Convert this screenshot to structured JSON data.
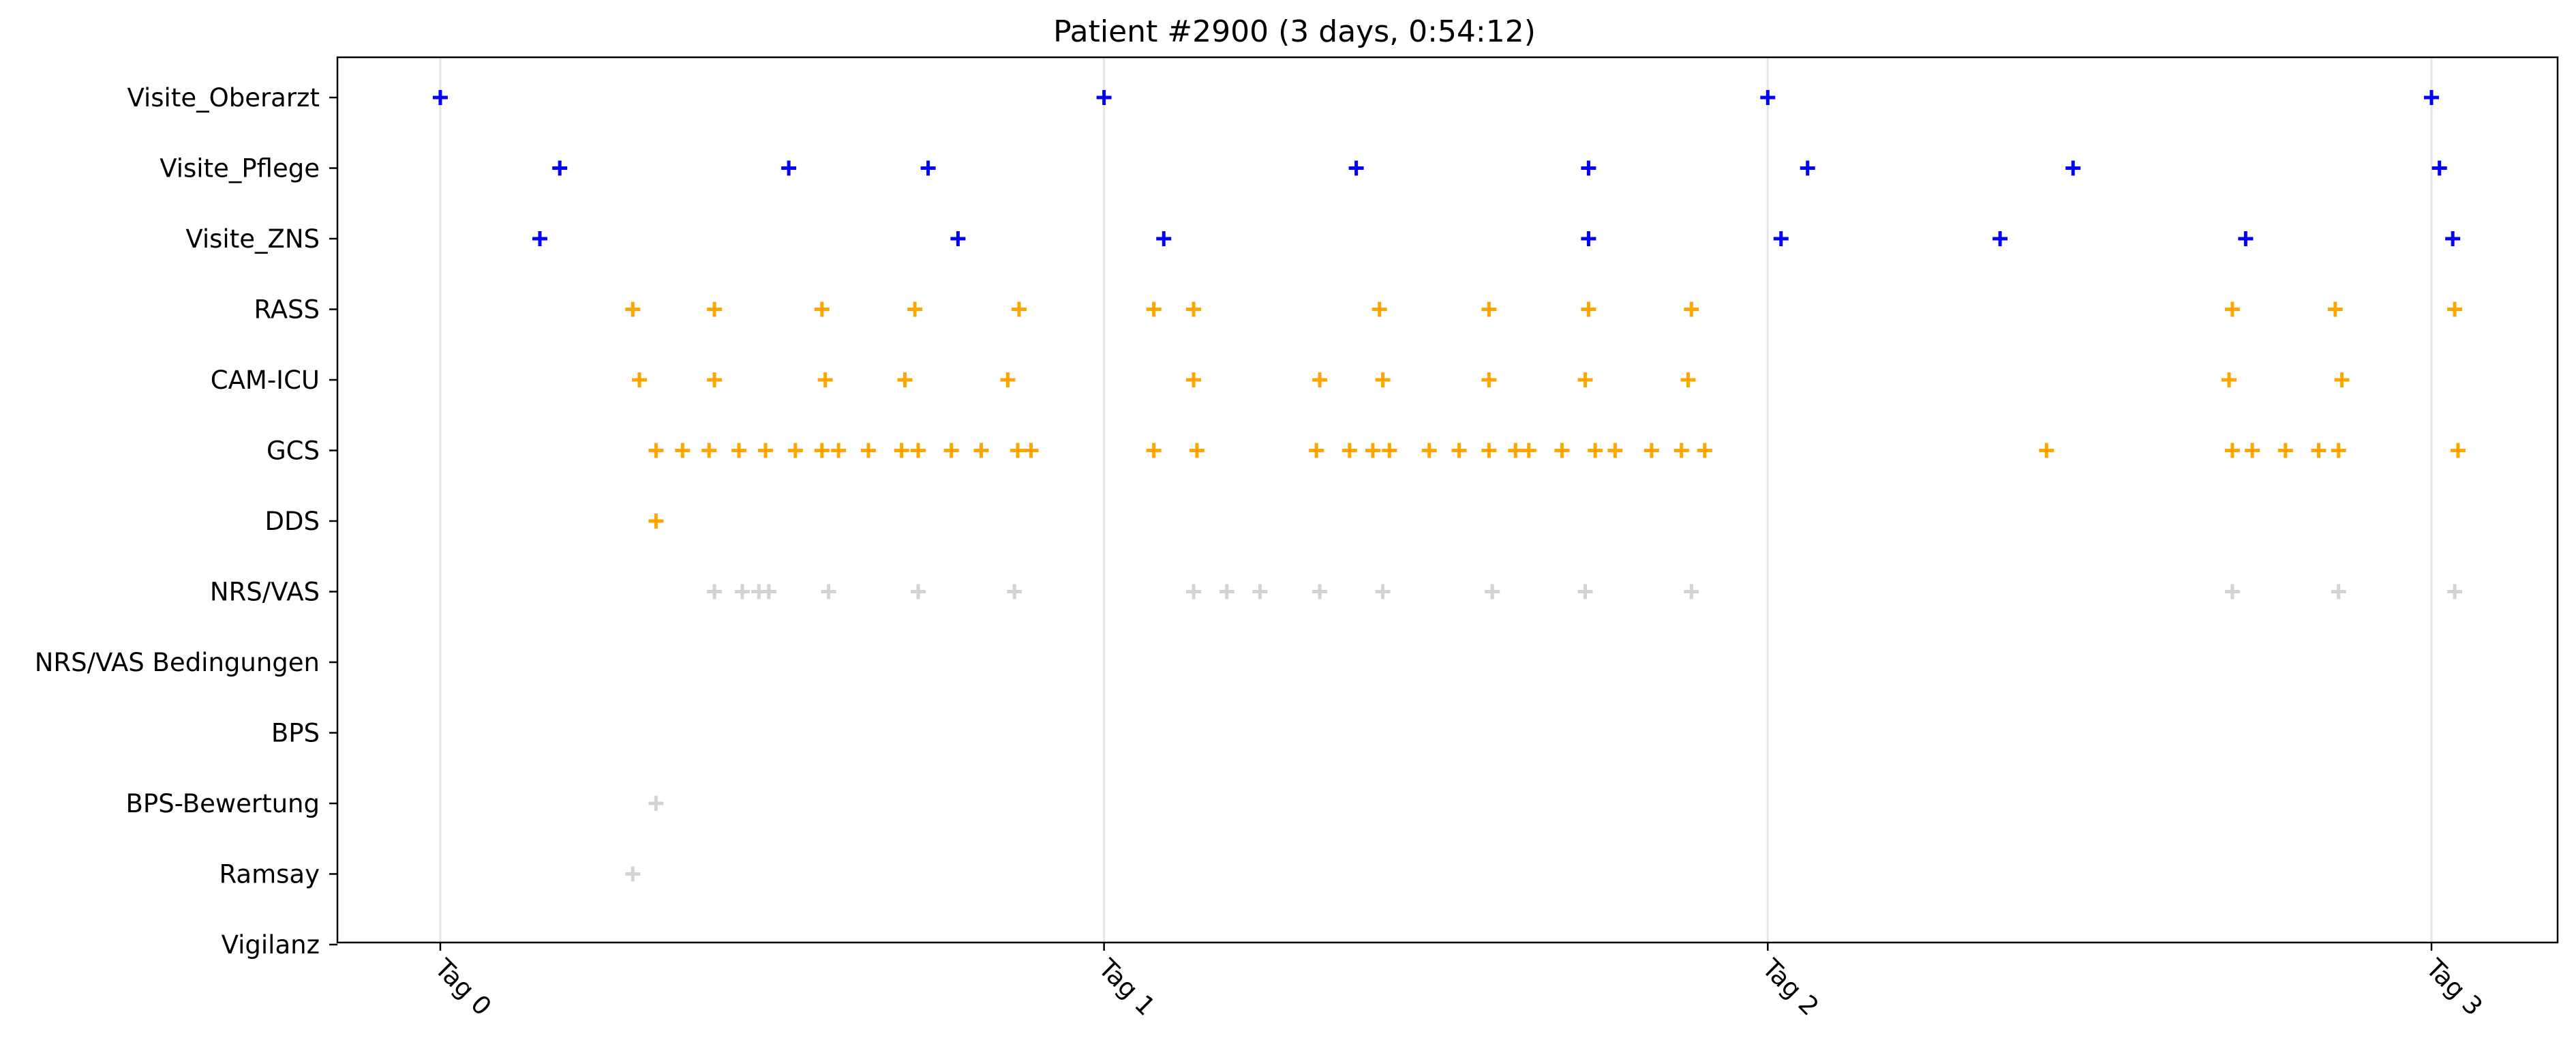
{
  "chart_data": {
    "type": "scatter",
    "title": "Patient #2900 (3 days, 0:54:12)",
    "xlabel": "",
    "ylabel": "",
    "marker": "plus",
    "grid": "vertical lines at day ticks",
    "x_unit": "days since Tag 0",
    "xlim": [
      -0.155,
      3.19
    ],
    "x_ticks": [
      {
        "value": 0,
        "label": "Tag 0"
      },
      {
        "value": 1,
        "label": "Tag 1"
      },
      {
        "value": 2,
        "label": "Tag 2"
      },
      {
        "value": 3,
        "label": "Tag 3"
      }
    ],
    "categories": [
      "Visite_Oberarzt",
      "Visite_Pflege",
      "Visite_ZNS",
      "RASS",
      "CAM-ICU",
      "GCS",
      "DDS",
      "NRS/VAS",
      "NRS/VAS Bedingungen",
      "BPS",
      "BPS-Bewertung",
      "Ramsay",
      "Vigilanz"
    ],
    "colors": {
      "visits": "#0000ff",
      "scores": "#ffa500",
      "pain": "#d3d3d3",
      "grid": "#e6e6e6"
    },
    "series": [
      {
        "category": "Visite_Oberarzt",
        "color": "#0000ff",
        "x": [
          0.0,
          1.0,
          2.0,
          3.0
        ]
      },
      {
        "category": "Visite_Pflege",
        "color": "#0000ff",
        "x": [
          0.18,
          0.525,
          0.735,
          1.38,
          1.73,
          2.06,
          2.46,
          3.012
        ]
      },
      {
        "category": "Visite_ZNS",
        "color": "#0000ff",
        "x": [
          0.15,
          0.78,
          1.09,
          1.73,
          2.02,
          2.35,
          2.72,
          3.032
        ]
      },
      {
        "category": "RASS",
        "color": "#ffa500",
        "x": [
          0.29,
          0.413,
          0.575,
          0.715,
          0.872,
          1.075,
          1.135,
          1.415,
          1.58,
          1.73,
          1.885,
          2.7,
          2.855,
          3.035
        ]
      },
      {
        "category": "CAM-ICU",
        "color": "#ffa500",
        "x": [
          0.3,
          0.413,
          0.58,
          0.7,
          0.855,
          1.135,
          1.325,
          1.42,
          1.58,
          1.725,
          1.88,
          2.695,
          2.865
        ]
      },
      {
        "category": "GCS",
        "color": "#ffa500",
        "x": [
          0.325,
          0.365,
          0.405,
          0.45,
          0.49,
          0.535,
          0.575,
          0.6,
          0.645,
          0.695,
          0.72,
          0.77,
          0.815,
          0.87,
          0.89,
          1.075,
          1.14,
          1.32,
          1.37,
          1.405,
          1.43,
          1.49,
          1.535,
          1.58,
          1.62,
          1.64,
          1.69,
          1.74,
          1.77,
          1.825,
          1.87,
          1.905,
          2.42,
          2.7,
          2.73,
          2.78,
          2.83,
          2.86,
          3.04
        ]
      },
      {
        "category": "DDS",
        "color": "#ffa500",
        "x": [
          0.325
        ]
      },
      {
        "category": "NRS/VAS",
        "color": "#d3d3d3",
        "x": [
          0.413,
          0.455,
          0.48,
          0.495,
          0.585,
          0.72,
          0.865,
          1.135,
          1.185,
          1.235,
          1.325,
          1.42,
          1.585,
          1.725,
          1.885,
          2.7,
          2.86,
          3.035
        ]
      },
      {
        "category": "NRS/VAS Bedingungen",
        "color": "#d3d3d3",
        "x": []
      },
      {
        "category": "BPS",
        "color": "#d3d3d3",
        "x": []
      },
      {
        "category": "BPS-Bewertung",
        "color": "#d3d3d3",
        "x": [
          0.325
        ]
      },
      {
        "category": "Ramsay",
        "color": "#d3d3d3",
        "x": [
          0.29
        ]
      },
      {
        "category": "Vigilanz",
        "color": "#d3d3d3",
        "x": []
      }
    ]
  }
}
